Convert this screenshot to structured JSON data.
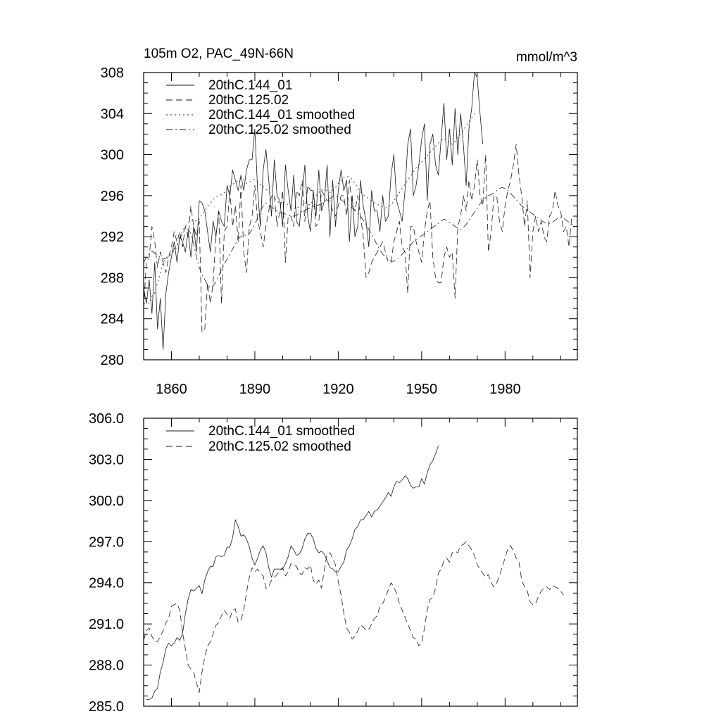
{
  "chart_data": [
    {
      "type": "line",
      "title_left": "105m O2, PAC_49N-66N",
      "title_right": "mmol/m^3",
      "xlim": [
        1850,
        2006
      ],
      "ylim": [
        280,
        308
      ],
      "xticks": [
        1860,
        1890,
        1920,
        1950,
        1980
      ],
      "xtick_labels": [
        "1860",
        "1890",
        "1920",
        "1950",
        "1980"
      ],
      "yticks": [
        280,
        284,
        288,
        292,
        296,
        300,
        304,
        308
      ],
      "ytick_labels": [
        "280",
        "284",
        "288",
        "292",
        "296",
        "300",
        "304",
        "308"
      ],
      "show_x_labels": true,
      "legend": [
        "20thC.144_01",
        "20thC.125.02",
        "20thC.144_01 smoothed",
        "20thC.125.02 smoothed"
      ],
      "series": [
        {
          "name": "20thC.144_01",
          "style": "solid",
          "x_start": 1850,
          "values": [
            287,
            285.5,
            287.8,
            284.5,
            289.5,
            283,
            286,
            281,
            286.5,
            288.5,
            290,
            291.5,
            289.5,
            292,
            291.5,
            290.5,
            292.5,
            290,
            293,
            290.5,
            295.5,
            295.3,
            294.5,
            292.5,
            290.5,
            293.5,
            292,
            294.5,
            293.5,
            293,
            297,
            296,
            298.5,
            297.5,
            296.5,
            298,
            296.5,
            298.5,
            299.5,
            299.5,
            302.5,
            296.5,
            293,
            298.5,
            300.5,
            297.5,
            294,
            299.5,
            296,
            295.5,
            293,
            299,
            296.5,
            294.5,
            298,
            293.5,
            293,
            296,
            299,
            294,
            292.5,
            296.5,
            294,
            298.5,
            294.5,
            295.5,
            299,
            292,
            297.5,
            293,
            296.5,
            298.5,
            296.5,
            297.5,
            291.5,
            296,
            292,
            293,
            297.5,
            295,
            293.5,
            291,
            296.5,
            294.5,
            294.5,
            292.5,
            296,
            293.5,
            294,
            298,
            300,
            295.5,
            294.5,
            293.5,
            296.5,
            301,
            302.5,
            296,
            297,
            299,
            301.5,
            303,
            295.5,
            301,
            302,
            299,
            298,
            301.5,
            305,
            299.5,
            302.5,
            299,
            304.5,
            300,
            304,
            301,
            297,
            302.5,
            304.5,
            308,
            307.5,
            304,
            301
          ]
        },
        {
          "name": "20thC.125.02",
          "style": "dashed",
          "x_start": 1850,
          "values": [
            285,
            289.5,
            290,
            293,
            291.5,
            289,
            290.5,
            289.5,
            288.5,
            290,
            291,
            292.5,
            291.5,
            292.5,
            291,
            293,
            292,
            295,
            293,
            292,
            293.5,
            282.7,
            283,
            287.5,
            285.5,
            287.5,
            292,
            294.5,
            285.5,
            292.5,
            293,
            296.5,
            293,
            295,
            291.5,
            297,
            290.5,
            288.5,
            293,
            294,
            297,
            293.5,
            292.5,
            291,
            293,
            294.5,
            296,
            296,
            293,
            294.5,
            296.5,
            289.5,
            294,
            294,
            293,
            296.5,
            296,
            297.5,
            293.5,
            297,
            296.5,
            296.5,
            293,
            293.5,
            296.5,
            296,
            295.5,
            295.5,
            294.5,
            294,
            295,
            296,
            296,
            294,
            297.5,
            295,
            294.5,
            296,
            294,
            292,
            288,
            288.5,
            289.5,
            290,
            290.5,
            291,
            291.5,
            290.5,
            289.5,
            289.5,
            291.5,
            292.5,
            293.5,
            291,
            290.5,
            286.5,
            293,
            293,
            291.5,
            290.5,
            289.5,
            292.5,
            294.5,
            295.5,
            290,
            288,
            287.5,
            287.5,
            290,
            291,
            290,
            290.5,
            286,
            293,
            294,
            296,
            294.5,
            297.5,
            295.5,
            297,
            299.5,
            296,
            295,
            300,
            290.5,
            292.5,
            296,
            296,
            293.5,
            292.5,
            295,
            296.5,
            297.5,
            299,
            301,
            298,
            296,
            293,
            295.5,
            288,
            292.5,
            294,
            292.5,
            293.5,
            292,
            291.5,
            294,
            294.5,
            296.5,
            295,
            294.5,
            292.5,
            293,
            291,
            294
          ]
        },
        {
          "name": "20thC.144_01 smoothed",
          "style": "dotted",
          "x_start": 1850,
          "values": [
            285.5,
            285.5,
            285.5,
            286.2,
            286.5,
            287.5,
            288.5,
            289.5,
            289.8,
            290,
            290.3,
            290.6,
            291,
            291.8,
            292.6,
            293,
            293.4,
            293.5,
            293.7,
            293.5,
            293.7,
            294.2,
            294.5,
            295,
            295.3,
            295.6,
            295.9,
            296,
            296.1,
            296.3,
            296.6,
            296.9,
            297.1,
            297.3,
            297.5,
            297.7,
            297.5,
            297.2,
            297.3,
            297.5,
            297.6,
            297.4,
            297.1,
            296.9,
            296.6,
            296.4,
            296.1,
            295.8,
            295.5,
            295.2,
            295.5,
            295.3,
            295.1,
            294.9,
            294.8,
            294.7,
            295,
            295.2,
            295.3,
            295.2,
            295.1,
            295.6,
            296,
            296.3,
            296.6,
            296.6,
            296.5,
            296.3,
            296.5,
            296.8,
            297.2,
            297.5,
            297.8,
            297.9,
            297.8,
            297.6,
            297.2,
            296.8,
            296.4,
            296.1,
            295.9,
            295.7,
            295.5,
            295.3,
            295.2,
            295,
            294.9,
            294.8,
            294.9,
            295.1,
            295.5,
            295.9,
            296.3,
            296.7,
            297.1,
            297.5,
            297.9,
            298.3,
            298.7,
            299,
            299.3,
            299.6,
            299.9,
            300.2,
            300.5,
            300.8,
            301.1,
            301.4,
            301.6,
            301.4,
            301.2,
            301,
            301.3,
            301.7,
            302,
            302.4,
            302.8,
            303.2,
            303.6,
            304
          ]
        },
        {
          "name": "20thC.125.02 smoothed",
          "style": "dashdot",
          "x_start": 1850,
          "values": [
            289.5,
            290,
            290.3,
            290.6,
            290.4,
            290.2,
            290,
            289.8,
            289.9,
            290.2,
            290.5,
            290.8,
            291.2,
            291.8,
            292.4,
            292.6,
            292.7,
            292.3,
            291.3,
            290,
            289,
            288.3,
            287.8,
            287.3,
            287,
            287.2,
            287.6,
            288.2,
            288.8,
            289.3,
            289.8,
            290.3,
            290.8,
            291.3,
            291.8,
            292,
            292.2,
            292.1,
            292.3,
            292.7,
            293.2,
            293.8,
            294.5,
            295,
            295.3,
            295.1,
            294.9,
            294.7,
            294.5,
            294.4,
            294.3,
            294.2,
            294.1,
            294,
            294,
            294.1,
            294.3,
            294.5,
            294.6,
            294.7,
            294.8,
            294.9,
            295,
            295.1,
            295.2,
            295.4,
            295.6,
            295.7,
            295.9,
            296,
            295.8,
            295.6,
            295.4,
            295.2,
            295,
            294.8,
            294.6,
            294.3,
            294,
            293.6,
            293.2,
            292.7,
            292.2,
            291.7,
            291.2,
            290.7,
            290.3,
            290,
            289.8,
            289.6,
            289.6,
            289.8,
            290,
            290.3,
            290.6,
            290.9,
            291.2,
            291.5,
            291.7,
            291.9,
            292.1,
            292.3,
            292.5,
            292.7,
            292.9,
            293.1,
            293.3,
            293.5,
            293.7,
            293.6,
            293.4,
            293.2,
            293,
            292.8,
            292.7,
            292.9,
            293.2,
            293.6,
            294,
            294.4,
            294.8,
            295.2,
            295.5,
            295.8,
            296,
            296.1,
            296.3,
            296.5,
            296.7,
            296.8,
            296.7,
            296.5,
            296.2,
            295.9,
            295.6,
            295.3,
            295,
            294.8,
            294.6,
            294.4,
            294.2,
            294,
            293.8,
            293.6,
            293.4,
            293.3,
            293.3,
            293.4,
            293.6,
            293.8,
            293.9,
            293.8,
            293.6,
            293.4,
            293.2,
            293
          ]
        }
      ]
    },
    {
      "type": "line",
      "xlim": [
        1850,
        2006
      ],
      "ylim": [
        285,
        306
      ],
      "xticks": [
        1860,
        1890,
        1920,
        1950,
        1980
      ],
      "yticks": [
        285,
        288,
        291,
        294,
        297,
        300,
        303,
        306
      ],
      "ytick_labels": [
        "285.0",
        "288.0",
        "291.0",
        "294.0",
        "297.0",
        "300.0",
        "303.0",
        "306.0"
      ],
      "show_x_labels": false,
      "legend": [
        "20thC.144_01 smoothed",
        "20thC.125.02 smoothed"
      ],
      "series": [
        {
          "name": "20thC.144_01 smoothed",
          "style": "solid",
          "x_start": 1851,
          "values": [
            285.5,
            285.5,
            285.6,
            286.1,
            286.3,
            287.5,
            288.2,
            289.2,
            289.6,
            289.4,
            289.6,
            290,
            289.8,
            290.3,
            291.7,
            292.8,
            293.5,
            293.4,
            293.6,
            293.8,
            293.2,
            294.2,
            294.8,
            295.2,
            295.2,
            295.9,
            296,
            295.9,
            296,
            296.6,
            296.6,
            297.3,
            298.6,
            298.1,
            297.4,
            297.5,
            297.2,
            296.6,
            295.8,
            295.3,
            295.8,
            296.4,
            296.7,
            296.2,
            295.1,
            294.4,
            295,
            295,
            295,
            295,
            295.4,
            295.9,
            296.7,
            296.4,
            296,
            296.1,
            296.5,
            297.2,
            297.6,
            297.6,
            297.2,
            296.5,
            296.2,
            296.3,
            296.1,
            295.6,
            295.1,
            295,
            294.8,
            294.8,
            295.2,
            295.5,
            296.4,
            296.7,
            297.2,
            297.9,
            298.1,
            298.6,
            298.6,
            298.9,
            299.2,
            298.8,
            299.2,
            299.3,
            299.6,
            299.9,
            300.2,
            300.6,
            300.3,
            301,
            301.4,
            301.3,
            301.5,
            301.8,
            301.6,
            301.1,
            300.9,
            301,
            301,
            301.6,
            301.2,
            302,
            302.6,
            302.9,
            303.4,
            304
          ]
        },
        {
          "name": "20thC.125.02 smoothed",
          "style": "dashed",
          "x_start": 1850,
          "values": [
            289.8,
            290.5,
            290.7,
            290.1,
            289.7,
            289.7,
            290.1,
            290.5,
            291.1,
            291.4,
            292.3,
            292.4,
            292.5,
            292,
            290.4,
            289.2,
            288,
            287.7,
            287.5,
            286.7,
            286,
            287.5,
            288.6,
            289.4,
            289.7,
            290.3,
            290.9,
            291.1,
            291.6,
            292,
            291.7,
            291.4,
            292,
            292.1,
            291.1,
            291.3,
            292,
            293.3,
            294.4,
            295.1,
            294.8,
            295,
            294.7,
            294.5,
            293.6,
            293.7,
            294.2,
            294.4,
            294.6,
            294.9,
            295.1,
            294.5,
            294.8,
            295.4,
            295.3,
            295.2,
            294.7,
            294.6,
            295.1,
            295,
            295.3,
            294.2,
            293.9,
            294.2,
            293.6,
            295,
            296.1,
            296.2,
            295.8,
            295.3,
            294.1,
            293.1,
            291.8,
            290.7,
            290.4,
            289.9,
            290.1,
            290.5,
            290.9,
            290.8,
            290.5,
            290.6,
            291,
            291.4,
            291.6,
            292.3,
            292.5,
            292.9,
            293.5,
            294,
            293.7,
            293.2,
            292.5,
            292,
            291.5,
            291,
            290.5,
            290,
            289.9,
            289.4,
            289.6,
            290.7,
            292,
            292.8,
            292.9,
            293.6,
            294.7,
            295,
            295.6,
            295.8,
            295.5,
            296.2,
            296.3,
            296.2,
            296.7,
            296.8,
            297,
            296.7,
            296.4,
            296,
            295.3,
            295,
            294.7,
            294.4,
            294.6,
            294,
            293.7,
            294,
            294.5,
            295.2,
            295.8,
            296.5,
            296.7,
            296.3,
            295.8,
            295.5,
            294.2,
            293.7,
            293.4,
            292.6,
            292.4,
            292.5,
            293,
            293.4,
            293.6,
            293.7,
            293.5,
            293.8,
            293.7,
            293.6,
            293.4,
            293.1
          ]
        }
      ]
    }
  ]
}
